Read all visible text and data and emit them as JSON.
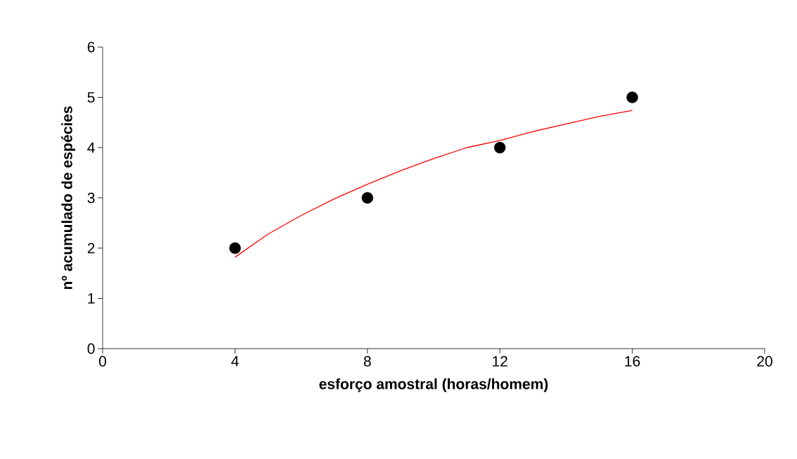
{
  "chart_data": {
    "type": "scatter",
    "xlabel": "esforço amostral (horas/homem)",
    "ylabel": "nº acumulado de espécies",
    "xlim": [
      0,
      20
    ],
    "xticks": [
      0,
      4,
      8,
      12,
      16,
      20
    ],
    "ylim": [
      0,
      6
    ],
    "yticks": [
      0,
      1,
      2,
      3,
      4,
      5,
      6
    ],
    "grid": false,
    "series": [
      {
        "color": "#000000",
        "marker": "circle",
        "x": [
          4,
          8,
          12,
          16
        ],
        "values": [
          2,
          3,
          4,
          5
        ]
      },
      {
        "type": "line",
        "color": "#ff0000",
        "marker": "none",
        "line_style": "solid",
        "x": [
          4,
          5,
          6,
          7,
          8,
          9,
          10,
          11,
          12,
          13,
          14,
          15,
          16
        ],
        "values": [
          1.82,
          2.28,
          2.65,
          2.98,
          3.27,
          3.54,
          3.78,
          4.0,
          4.14,
          4.32,
          4.47,
          4.62,
          4.74
        ]
      }
    ]
  }
}
